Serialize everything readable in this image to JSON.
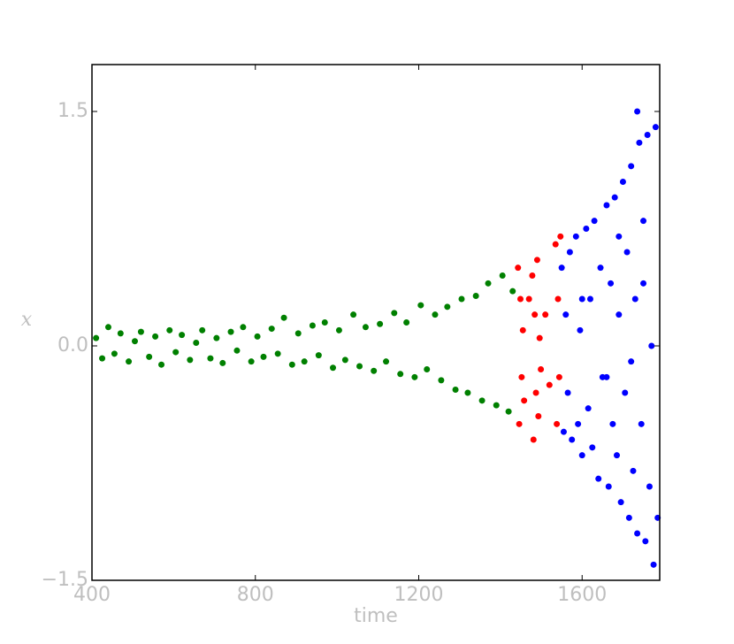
{
  "chart_data": {
    "type": "scatter",
    "xlabel": "time",
    "ylabel": "x",
    "xlim": [
      400,
      1790
    ],
    "ylim": [
      -1.5,
      1.8
    ],
    "xticks": [
      400,
      800,
      1200,
      1600
    ],
    "yticks": [
      {
        "value": -1.5,
        "label": "−1.5"
      },
      {
        "value": 0,
        "label": "0.0"
      },
      1.5
    ],
    "series": [
      {
        "color": "#008000",
        "x": [
          410,
          425,
          440,
          455,
          470,
          490,
          505,
          520,
          540,
          555,
          570,
          590,
          605,
          620,
          640,
          655,
          670,
          690,
          705,
          720,
          740,
          755,
          770,
          790,
          805,
          820,
          840,
          855,
          870,
          890,
          905,
          920,
          940,
          955,
          970,
          990,
          1005,
          1020,
          1040,
          1055,
          1070,
          1090,
          1105,
          1120,
          1140,
          1155,
          1170,
          1190,
          1205,
          1220,
          1240,
          1255,
          1270,
          1290,
          1305,
          1320,
          1340,
          1355,
          1370,
          1390,
          1405,
          1420,
          1430
        ],
        "y": [
          0.05,
          -0.08,
          0.12,
          -0.05,
          0.08,
          -0.1,
          0.03,
          0.09,
          -0.07,
          0.06,
          -0.12,
          0.1,
          -0.04,
          0.07,
          -0.09,
          0.02,
          0.1,
          -0.08,
          0.05,
          -0.11,
          0.09,
          -0.03,
          0.12,
          -0.1,
          0.06,
          -0.07,
          0.11,
          -0.05,
          0.18,
          -0.12,
          0.08,
          -0.1,
          0.13,
          -0.06,
          0.15,
          -0.14,
          0.1,
          -0.09,
          0.2,
          -0.13,
          0.12,
          -0.16,
          0.14,
          -0.1,
          0.21,
          -0.18,
          0.15,
          -0.2,
          0.26,
          -0.15,
          0.2,
          -0.22,
          0.25,
          -0.28,
          0.3,
          -0.3,
          0.32,
          -0.35,
          0.4,
          -0.38,
          0.45,
          -0.42,
          0.35
        ]
      },
      {
        "color": "#ff0000",
        "x": [
          1443,
          1446,
          1449,
          1452,
          1455,
          1458,
          1470,
          1478,
          1481,
          1484,
          1487,
          1490,
          1493,
          1496,
          1499,
          1510,
          1520,
          1535,
          1538,
          1541,
          1544,
          1547
        ],
        "y": [
          0.5,
          -0.5,
          0.3,
          -0.2,
          0.1,
          -0.35,
          0.3,
          0.45,
          -0.6,
          0.2,
          -0.3,
          0.55,
          -0.45,
          0.05,
          -0.15,
          0.2,
          -0.25,
          0.65,
          -0.5,
          0.3,
          -0.2,
          0.7
        ]
      },
      {
        "color": "#0000ff",
        "x": [
          1550,
          1555,
          1560,
          1565,
          1570,
          1575,
          1585,
          1590,
          1595,
          1600,
          1610,
          1615,
          1620,
          1625,
          1630,
          1640,
          1645,
          1650,
          1660,
          1665,
          1670,
          1675,
          1680,
          1685,
          1690,
          1695,
          1700,
          1705,
          1710,
          1715,
          1720,
          1725,
          1730,
          1735,
          1740,
          1745,
          1750,
          1755,
          1760,
          1765,
          1770,
          1775,
          1780,
          1785,
          1735,
          1690,
          1600,
          1660,
          1720,
          1750
        ],
        "y": [
          0.5,
          -0.55,
          0.2,
          -0.3,
          0.6,
          -0.6,
          0.7,
          -0.5,
          0.1,
          -0.7,
          0.75,
          -0.4,
          0.3,
          -0.65,
          0.8,
          -0.85,
          0.5,
          -0.2,
          0.9,
          -0.9,
          0.4,
          -0.5,
          0.95,
          -0.7,
          0.2,
          -1.0,
          1.05,
          -0.3,
          0.6,
          -1.1,
          1.15,
          -0.8,
          0.3,
          -1.2,
          1.3,
          -0.5,
          0.8,
          -1.25,
          1.35,
          -0.9,
          0.0,
          -1.4,
          1.4,
          -1.1,
          1.5,
          0.7,
          0.3,
          -0.2,
          -0.1,
          0.4
        ]
      }
    ]
  }
}
